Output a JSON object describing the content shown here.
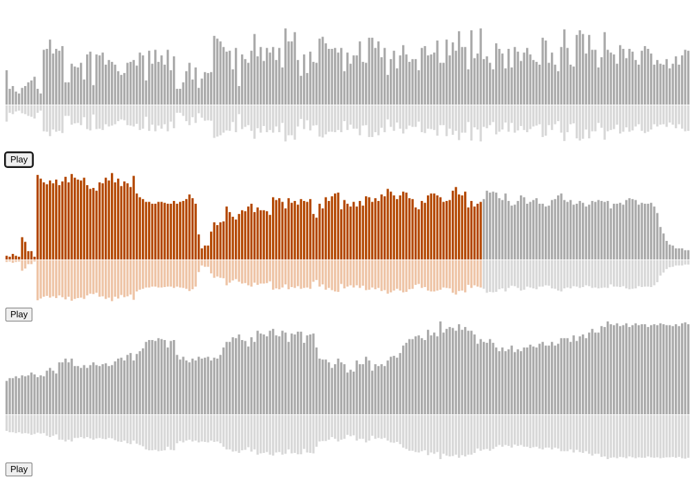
{
  "colors": {
    "bar_unplayed": "#aaaaaa",
    "reflection_unplayed": "#d8d8d8",
    "bar_played": "#b34700",
    "reflection_played": "#eec4a6",
    "divider": "#ffffff"
  },
  "players": [
    {
      "play_label": "Play",
      "focused": true,
      "progress": 0,
      "bars": [
        0.37,
        0.17,
        0.2,
        0.14,
        0.12,
        0.18,
        0.2,
        0.24,
        0.26,
        0.3,
        0.17,
        0.12,
        0.59,
        0.6,
        0.7,
        0.55,
        0.6,
        0.58,
        0.63,
        0.24,
        0.24,
        0.44,
        0.41,
        0.4,
        0.45,
        0.27,
        0.54,
        0.57,
        0.21,
        0.54,
        0.53,
        0.56,
        0.43,
        0.48,
        0.46,
        0.43,
        0.36,
        0.32,
        0.34,
        0.45,
        0.46,
        0.48,
        0.42,
        0.56,
        0.53,
        0.26,
        0.58,
        0.44,
        0.59,
        0.46,
        0.53,
        0.43,
        0.59,
        0.37,
        0.52,
        0.17,
        0.17,
        0.24,
        0.36,
        0.45,
        0.27,
        0.4,
        0.18,
        0.28,
        0.35,
        0.34,
        0.35,
        0.74,
        0.71,
        0.68,
        0.62,
        0.57,
        0.58,
        0.38,
        0.61,
        0.2,
        0.54,
        0.49,
        0.45,
        0.58,
        0.76,
        0.52,
        0.62,
        0.47,
        0.61,
        0.56,
        0.62,
        0.48,
        0.61,
        0.4,
        0.82,
        0.68,
        0.68,
        0.78,
        0.48,
        0.31,
        0.54,
        0.34,
        0.57,
        0.46,
        0.45,
        0.71,
        0.73,
        0.66,
        0.6,
        0.6,
        0.61,
        0.56,
        0.61,
        0.36,
        0.56,
        0.44,
        0.53,
        0.53,
        0.68,
        0.46,
        0.45,
        0.72,
        0.72,
        0.61,
        0.68,
        0.51,
        0.61,
        0.32,
        0.49,
        0.58,
        0.39,
        0.53,
        0.64,
        0.54,
        0.46,
        0.49,
        0.49,
        0.37,
        0.61,
        0.63,
        0.53,
        0.54,
        0.56,
        0.69,
        0.45,
        0.45,
        0.7,
        0.53,
        0.67,
        0.58,
        0.79,
        0.62,
        0.62,
        0.38,
        0.8,
        0.5,
        0.55,
        0.82,
        0.49,
        0.52,
        0.45,
        0.38,
        0.66,
        0.6,
        0.55,
        0.39,
        0.6,
        0.4,
        0.62,
        0.57,
        0.47,
        0.56,
        0.61,
        0.54,
        0.48,
        0.46,
        0.43,
        0.72,
        0.69,
        0.45,
        0.56,
        0.43,
        0.36,
        0.62,
        0.81,
        0.61,
        0.43,
        0.41,
        0.75,
        0.8,
        0.76,
        0.55,
        0.75,
        0.59,
        0.59,
        0.4,
        0.51,
        0.78,
        0.59,
        0.56,
        0.54,
        0.44,
        0.64,
        0.6,
        0.5,
        0.6,
        0.57,
        0.48,
        0.43,
        0.58,
        0.63,
        0.6,
        0.55,
        0.43,
        0.48,
        0.44,
        0.43,
        0.49,
        0.39,
        0.44,
        0.52,
        0.43,
        0.53,
        0.59,
        0.58,
        0.49,
        0.61,
        0.53,
        0.51,
        0.42,
        0.67,
        0.69,
        0.61,
        0.64,
        0.55,
        0.7,
        0.5,
        0.56,
        0.84,
        0.51,
        0.5,
        0.61,
        0.48,
        0.5,
        0.7,
        0.58,
        0.62,
        0.58,
        0.48,
        0.43,
        0.5,
        0.52,
        0.51,
        0.58,
        0.54,
        0.5,
        0.52,
        0.57,
        0.6,
        0.79,
        0.56,
        0.51,
        0.4,
        0.6,
        0.45,
        0.42,
        0.61,
        0.6,
        0.58,
        0.64,
        0.66,
        0.52,
        0.47,
        0.51,
        0.47,
        0.53,
        0.59,
        0.49,
        0.31,
        0.39,
        0.43,
        0.48,
        0.47,
        0.48,
        0.52,
        0.55,
        0.42,
        0.43,
        0.52,
        0.61,
        0.55,
        0.36,
        0.15,
        0.11,
        0.07,
        0.04,
        0.03
      ]
    },
    {
      "play_label": "Play",
      "focused": false,
      "progress": 0.695,
      "bars": [
        0.04,
        0.03,
        0.06,
        0.04,
        0.03,
        0.24,
        0.19,
        0.09,
        0.09,
        0.03,
        0.91,
        0.87,
        0.83,
        0.81,
        0.85,
        0.82,
        0.86,
        0.8,
        0.84,
        0.89,
        0.83,
        0.92,
        0.88,
        0.86,
        0.85,
        0.88,
        0.8,
        0.76,
        0.77,
        0.74,
        0.83,
        0.82,
        0.88,
        0.85,
        0.93,
        0.83,
        0.87,
        0.79,
        0.84,
        0.82,
        0.78,
        0.9,
        0.71,
        0.67,
        0.65,
        0.62,
        0.62,
        0.6,
        0.6,
        0.62,
        0.62,
        0.61,
        0.6,
        0.6,
        0.63,
        0.6,
        0.62,
        0.63,
        0.65,
        0.7,
        0.66,
        0.6,
        0.27,
        0.12,
        0.15,
        0.15,
        0.3,
        0.4,
        0.37,
        0.4,
        0.41,
        0.57,
        0.51,
        0.46,
        0.43,
        0.49,
        0.53,
        0.52,
        0.57,
        0.6,
        0.51,
        0.56,
        0.53,
        0.53,
        0.52,
        0.48,
        0.67,
        0.64,
        0.66,
        0.62,
        0.55,
        0.66,
        0.61,
        0.63,
        0.59,
        0.65,
        0.63,
        0.62,
        0.65,
        0.49,
        0.45,
        0.6,
        0.55,
        0.67,
        0.63,
        0.68,
        0.71,
        0.72,
        0.54,
        0.64,
        0.6,
        0.57,
        0.62,
        0.57,
        0.63,
        0.58,
        0.68,
        0.67,
        0.62,
        0.66,
        0.63,
        0.7,
        0.68,
        0.76,
        0.73,
        0.69,
        0.65,
        0.69,
        0.73,
        0.72,
        0.66,
        0.65,
        0.56,
        0.54,
        0.63,
        0.61,
        0.69,
        0.71,
        0.71,
        0.69,
        0.67,
        0.62,
        0.63,
        0.64,
        0.74,
        0.78,
        0.7,
        0.69,
        0.73,
        0.56,
        0.63,
        0.57,
        0.6,
        0.62,
        0.65,
        0.74,
        0.72,
        0.73,
        0.72,
        0.66,
        0.64,
        0.71,
        0.63,
        0.58,
        0.59,
        0.63,
        0.69,
        0.67,
        0.6,
        0.62,
        0.64,
        0.66,
        0.6,
        0.6,
        0.57,
        0.58,
        0.64,
        0.65,
        0.69,
        0.71,
        0.64,
        0.62,
        0.64,
        0.59,
        0.6,
        0.63,
        0.61,
        0.57,
        0.59,
        0.63,
        0.62,
        0.64,
        0.63,
        0.62,
        0.63,
        0.55,
        0.6,
        0.6,
        0.61,
        0.59,
        0.64,
        0.66,
        0.65,
        0.64,
        0.59,
        0.61,
        0.6,
        0.6,
        0.61,
        0.57,
        0.5,
        0.35,
        0.28,
        0.2,
        0.16,
        0.15,
        0.12,
        0.12,
        0.12,
        0.1,
        0.1,
        0.15,
        0.14,
        0.1,
        0.08,
        0.12,
        0.15,
        0.1,
        0.1,
        0.12,
        0.06,
        0.06,
        0.08,
        0.07,
        0.06,
        0.06,
        0.05,
        0.06,
        0.09,
        0.1,
        0.12,
        0.11,
        0.14,
        0.15,
        0.14,
        0.15,
        0.09,
        0.1,
        0.1,
        0.1,
        0.09,
        0.09,
        0.09,
        0.08,
        0.1,
        0.12,
        0.12,
        0.09,
        0.07,
        0.16,
        0.14,
        0.18,
        0.17,
        0.13,
        0.18,
        0.15,
        0.2,
        0.18,
        0.19,
        0.22,
        0.28,
        0.31,
        0.25,
        0.23,
        0.17,
        0.13,
        0.1,
        0.12,
        0.08,
        0.07,
        0.16,
        0.13,
        0.4,
        0.45,
        0.3,
        0.35,
        0.2,
        0.3,
        0.09,
        0.1,
        0.07,
        0.05
      ]
    },
    {
      "play_label": "Play",
      "focused": false,
      "progress": 0,
      "bars": [
        0.36,
        0.39,
        0.39,
        0.41,
        0.39,
        0.42,
        0.41,
        0.42,
        0.45,
        0.43,
        0.4,
        0.42,
        0.41,
        0.47,
        0.5,
        0.47,
        0.44,
        0.56,
        0.56,
        0.6,
        0.56,
        0.6,
        0.52,
        0.52,
        0.5,
        0.53,
        0.5,
        0.53,
        0.56,
        0.53,
        0.52,
        0.54,
        0.55,
        0.52,
        0.53,
        0.57,
        0.6,
        0.61,
        0.58,
        0.64,
        0.66,
        0.58,
        0.65,
        0.68,
        0.71,
        0.78,
        0.8,
        0.8,
        0.79,
        0.82,
        0.81,
        0.8,
        0.72,
        0.79,
        0.8,
        0.64,
        0.59,
        0.62,
        0.58,
        0.56,
        0.6,
        0.58,
        0.62,
        0.6,
        0.61,
        0.62,
        0.58,
        0.61,
        0.6,
        0.64,
        0.72,
        0.78,
        0.78,
        0.83,
        0.82,
        0.86,
        0.8,
        0.79,
        0.73,
        0.83,
        0.78,
        0.9,
        0.87,
        0.86,
        0.84,
        0.9,
        0.92,
        0.85,
        0.84,
        0.9,
        0.88,
        0.78,
        0.87,
        0.86,
        0.89,
        0.89,
        0.77,
        0.85,
        0.86,
        0.87,
        0.72,
        0.6,
        0.59,
        0.59,
        0.56,
        0.5,
        0.54,
        0.6,
        0.56,
        0.54,
        0.45,
        0.48,
        0.46,
        0.58,
        0.54,
        0.54,
        0.62,
        0.58,
        0.47,
        0.54,
        0.52,
        0.54,
        0.52,
        0.58,
        0.62,
        0.63,
        0.61,
        0.66,
        0.74,
        0.77,
        0.81,
        0.81,
        0.84,
        0.85,
        0.82,
        0.8,
        0.91,
        0.85,
        0.88,
        0.84,
        1.0,
        0.88,
        0.92,
        0.94,
        0.93,
        0.9,
        0.97,
        0.91,
        0.94,
        0.9,
        0.9,
        0.86,
        0.76,
        0.81,
        0.78,
        0.77,
        0.81,
        0.77,
        0.72,
        0.68,
        0.72,
        0.68,
        0.7,
        0.74,
        0.67,
        0.7,
        0.68,
        0.72,
        0.72,
        0.75,
        0.73,
        0.72,
        0.76,
        0.78,
        0.74,
        0.74,
        0.78,
        0.74,
        0.76,
        0.82,
        0.82,
        0.82,
        0.78,
        0.85,
        0.79,
        0.84,
        0.86,
        0.82,
        0.88,
        0.92,
        0.88,
        0.88,
        0.95,
        0.94,
        1.0,
        0.97,
        0.96,
        0.98,
        0.95,
        0.96,
        0.98,
        0.94,
        0.96,
        0.98,
        0.96,
        0.97,
        0.97,
        0.94,
        0.96,
        0.97,
        0.96,
        0.98,
        0.97,
        0.96,
        0.96,
        0.95,
        0.97,
        0.95,
        0.98,
        0.99,
        0.97,
        0.97,
        0.95,
        0.93,
        0.94,
        0.97,
        0.97,
        0.95,
        0.96,
        0.95,
        0.99,
        0.99,
        0.96,
        0.97,
        0.96,
        0.97,
        0.96,
        0.97,
        0.96,
        0.96,
        0.96,
        0.96,
        0.97,
        0.96,
        0.95,
        0.96,
        0.97,
        0.96,
        0.94,
        0.95,
        0.97,
        0.96,
        0.96,
        0.97,
        0.95,
        0.96,
        0.96,
        0.94,
        0.95,
        0.95,
        0.96,
        0.96,
        0.95,
        0.97,
        0.95,
        0.95,
        0.96,
        0.97,
        0.96,
        0.96,
        0.97,
        0.99,
        0.95,
        0.96,
        0.97,
        0.97,
        0.96,
        0.96,
        0.97,
        0.94,
        0.94,
        0.97,
        0.96,
        0.95,
        0.96,
        0.96,
        0.96,
        0.97,
        0.97,
        0.96,
        0.96,
        0.95,
        0.97,
        0.96,
        0.96,
        0.96,
        0.97,
        0.96,
        0.95,
        0.96,
        0.97,
        0.95,
        0.96,
        0.96,
        0.97,
        0.96,
        0.96
      ]
    }
  ]
}
